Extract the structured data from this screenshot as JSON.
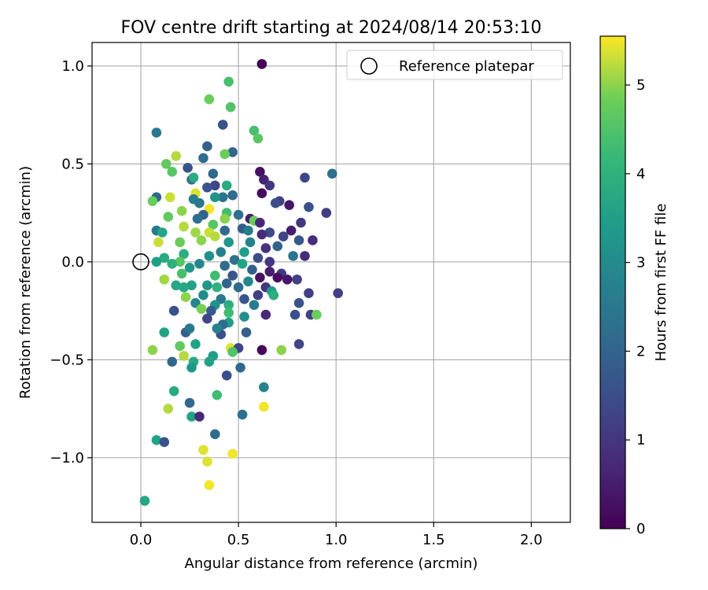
{
  "chart_data": {
    "type": "scatter",
    "title": "FOV centre drift starting at 2024/08/14 20:53:10",
    "xlabel": "Angular distance from reference (arcmin)",
    "ylabel": "Rotation from reference (arcmin)",
    "xlim": [
      -0.25,
      2.2
    ],
    "ylim": [
      -1.33,
      1.12
    ],
    "xticks": [
      0.0,
      0.5,
      1.0,
      1.5,
      2.0
    ],
    "xtick_labels": [
      "0.0",
      "0.5",
      "1.0",
      "1.5",
      "2.0"
    ],
    "yticks": [
      -1.0,
      -0.5,
      0.0,
      0.5,
      1.0
    ],
    "ytick_labels": [
      "−1.0",
      "−0.5",
      "0.0",
      "0.5",
      "1.0"
    ],
    "grid": true,
    "legend": {
      "position": "top-right",
      "entries": [
        "Reference platepar"
      ]
    },
    "reference_point": {
      "x": 0.0,
      "y": 0.0,
      "label": "Reference platepar"
    },
    "colorbar": {
      "label": "Hours from first FF file",
      "range": [
        0,
        5.55
      ],
      "ticks": [
        0,
        1,
        2,
        3,
        4,
        5
      ],
      "tick_labels": [
        "0",
        "1",
        "2",
        "3",
        "4",
        "5"
      ],
      "colormap": "viridis"
    },
    "points": [
      [
        0.62,
        1.01,
        0.0
      ],
      [
        0.45,
        0.92,
        4.4
      ],
      [
        0.35,
        0.83,
        4.8
      ],
      [
        0.46,
        0.79,
        4.5
      ],
      [
        0.42,
        0.7,
        1.6
      ],
      [
        0.58,
        0.67,
        4.4
      ],
      [
        0.6,
        0.63,
        4.6
      ],
      [
        0.08,
        0.66,
        2.5
      ],
      [
        0.34,
        0.59,
        1.9
      ],
      [
        0.47,
        0.56,
        2.0
      ],
      [
        0.43,
        0.55,
        4.8
      ],
      [
        0.32,
        0.53,
        2.2
      ],
      [
        0.18,
        0.54,
        5.2
      ],
      [
        0.13,
        0.5,
        4.7
      ],
      [
        0.16,
        0.46,
        4.6
      ],
      [
        0.24,
        0.48,
        1.6
      ],
      [
        0.61,
        0.46,
        0.3
      ],
      [
        0.98,
        0.45,
        2.3
      ],
      [
        0.37,
        0.45,
        2.1
      ],
      [
        0.63,
        0.42,
        0.6
      ],
      [
        0.26,
        0.42,
        2.2
      ],
      [
        0.27,
        0.43,
        3.8
      ],
      [
        0.84,
        0.43,
        1.3
      ],
      [
        0.66,
        0.39,
        1.0
      ],
      [
        0.44,
        0.39,
        3.8
      ],
      [
        0.38,
        0.39,
        1.3
      ],
      [
        0.34,
        0.38,
        1.6
      ],
      [
        0.08,
        0.33,
        2.1
      ],
      [
        0.15,
        0.33,
        5.3
      ],
      [
        0.28,
        0.35,
        5.4
      ],
      [
        0.47,
        0.34,
        2.2
      ],
      [
        0.62,
        0.35,
        0.2
      ],
      [
        0.42,
        0.33,
        2.4
      ],
      [
        0.38,
        0.33,
        3.2
      ],
      [
        0.27,
        0.32,
        2.7
      ],
      [
        0.06,
        0.31,
        4.8
      ],
      [
        0.71,
        0.31,
        1.2
      ],
      [
        0.69,
        0.3,
        1.5
      ],
      [
        0.3,
        0.3,
        2.5
      ],
      [
        0.76,
        0.29,
        0.4
      ],
      [
        0.86,
        0.28,
        1.6
      ],
      [
        0.95,
        0.25,
        1.1
      ],
      [
        0.21,
        0.26,
        5.0
      ],
      [
        0.35,
        0.27,
        5.5
      ],
      [
        0.44,
        0.25,
        4.3
      ],
      [
        0.5,
        0.24,
        2.3
      ],
      [
        0.32,
        0.24,
        2.0
      ],
      [
        0.14,
        0.23,
        4.7
      ],
      [
        0.56,
        0.22,
        0.5
      ],
      [
        0.58,
        0.21,
        4.8
      ],
      [
        0.61,
        0.2,
        0.7
      ],
      [
        0.82,
        0.2,
        1.0
      ],
      [
        0.43,
        0.22,
        5.0
      ],
      [
        0.29,
        0.22,
        2.3
      ],
      [
        0.22,
        0.18,
        5.2
      ],
      [
        0.37,
        0.19,
        4.6
      ],
      [
        0.08,
        0.16,
        2.6
      ],
      [
        0.11,
        0.15,
        3.7
      ],
      [
        0.35,
        0.15,
        5.3
      ],
      [
        0.28,
        0.15,
        5.1
      ],
      [
        0.43,
        0.16,
        2.2
      ],
      [
        0.52,
        0.17,
        1.8
      ],
      [
        0.55,
        0.16,
        2.6
      ],
      [
        0.66,
        0.15,
        1.4
      ],
      [
        0.77,
        0.16,
        0.5
      ],
      [
        0.62,
        0.14,
        0.8
      ],
      [
        0.73,
        0.13,
        1.3
      ],
      [
        0.88,
        0.11,
        0.8
      ],
      [
        0.81,
        0.11,
        1.7
      ],
      [
        0.38,
        0.13,
        5.2
      ],
      [
        0.31,
        0.11,
        5.0
      ],
      [
        0.2,
        0.1,
        4.8
      ],
      [
        0.09,
        0.1,
        5.3
      ],
      [
        0.45,
        0.1,
        3.3
      ],
      [
        0.56,
        0.1,
        2.8
      ],
      [
        0.64,
        0.07,
        0.9
      ],
      [
        0.7,
        0.08,
        2.0
      ],
      [
        0.53,
        0.05,
        3.5
      ],
      [
        0.41,
        0.05,
        2.7
      ],
      [
        0.22,
        0.04,
        3.9
      ],
      [
        0.12,
        0.02,
        3.8
      ],
      [
        0.35,
        0.03,
        3.1
      ],
      [
        0.48,
        0.01,
        2.3
      ],
      [
        0.6,
        0.02,
        1.5
      ],
      [
        0.66,
        0.0,
        1.0
      ],
      [
        0.78,
        0.03,
        2.4
      ],
      [
        0.84,
        0.03,
        0.8
      ],
      [
        0.52,
        -0.01,
        3.6
      ],
      [
        0.43,
        -0.02,
        2.2
      ],
      [
        0.3,
        -0.01,
        2.9
      ],
      [
        0.2,
        0.0,
        4.6
      ],
      [
        0.08,
        0.0,
        3.5
      ],
      [
        0.16,
        -0.01,
        3.9
      ],
      [
        0.25,
        -0.03,
        3.3
      ],
      [
        0.57,
        -0.04,
        1.9
      ],
      [
        0.66,
        -0.05,
        0.5
      ],
      [
        0.72,
        -0.06,
        1.1
      ],
      [
        0.8,
        -0.09,
        1.2
      ],
      [
        0.47,
        -0.07,
        1.7
      ],
      [
        0.38,
        -0.07,
        4.3
      ],
      [
        0.21,
        -0.06,
        4.4
      ],
      [
        0.12,
        -0.09,
        5.1
      ],
      [
        0.61,
        -0.08,
        0.3
      ],
      [
        0.7,
        -0.08,
        0.2
      ],
      [
        0.75,
        -0.09,
        0.4
      ],
      [
        0.55,
        -0.1,
        2.9
      ],
      [
        0.44,
        -0.11,
        2.0
      ],
      [
        0.34,
        -0.12,
        3.3
      ],
      [
        0.26,
        -0.12,
        3.6
      ],
      [
        0.18,
        -0.12,
        3.7
      ],
      [
        0.22,
        -0.13,
        3.7
      ],
      [
        0.39,
        -0.13,
        4.0
      ],
      [
        0.5,
        -0.13,
        2.2
      ],
      [
        0.64,
        -0.13,
        1.0
      ],
      [
        0.67,
        -0.15,
        3.5
      ],
      [
        0.86,
        -0.16,
        1.2
      ],
      [
        1.01,
        -0.16,
        1.2
      ],
      [
        0.6,
        -0.17,
        1.2
      ],
      [
        0.32,
        -0.17,
        3.0
      ],
      [
        0.23,
        -0.18,
        5.0
      ],
      [
        0.41,
        -0.19,
        2.5
      ],
      [
        0.53,
        -0.19,
        1.7
      ],
      [
        0.68,
        -0.17,
        3.9
      ],
      [
        0.81,
        -0.21,
        1.6
      ],
      [
        0.58,
        -0.22,
        2.6
      ],
      [
        0.45,
        -0.22,
        3.9
      ],
      [
        0.28,
        -0.21,
        2.9
      ],
      [
        0.38,
        -0.22,
        3.2
      ],
      [
        0.31,
        -0.24,
        4.9
      ],
      [
        0.17,
        -0.25,
        1.6
      ],
      [
        0.36,
        -0.25,
        1.8
      ],
      [
        0.45,
        -0.26,
        4.3
      ],
      [
        0.53,
        -0.28,
        3.1
      ],
      [
        0.64,
        -0.27,
        0.7
      ],
      [
        0.79,
        -0.27,
        1.5
      ],
      [
        0.87,
        -0.27,
        1.2
      ],
      [
        0.9,
        -0.27,
        4.8
      ],
      [
        0.34,
        -0.29,
        1.3
      ],
      [
        0.45,
        -0.31,
        3.5
      ],
      [
        0.42,
        -0.32,
        2.2
      ],
      [
        0.12,
        -0.36,
        3.6
      ],
      [
        0.23,
        -0.36,
        1.9
      ],
      [
        0.54,
        -0.36,
        1.9
      ],
      [
        0.41,
        -0.37,
        1.5
      ],
      [
        0.39,
        -0.34,
        2.8
      ],
      [
        0.25,
        -0.34,
        2.5
      ],
      [
        0.2,
        -0.43,
        4.7
      ],
      [
        0.28,
        -0.42,
        3.6
      ],
      [
        0.46,
        -0.44,
        5.4
      ],
      [
        0.5,
        -0.44,
        1.3
      ],
      [
        0.06,
        -0.45,
        5.0
      ],
      [
        0.62,
        -0.45,
        0.1
      ],
      [
        0.72,
        -0.45,
        5.0
      ],
      [
        0.81,
        -0.42,
        1.3
      ],
      [
        0.47,
        -0.46,
        4.5
      ],
      [
        0.22,
        -0.48,
        5.2
      ],
      [
        0.37,
        -0.48,
        3.5
      ],
      [
        0.16,
        -0.51,
        2.1
      ],
      [
        0.35,
        -0.51,
        3.6
      ],
      [
        0.27,
        -0.51,
        3.8
      ],
      [
        0.26,
        -0.54,
        3.3
      ],
      [
        0.51,
        -0.54,
        2.1
      ],
      [
        0.44,
        -0.58,
        1.5
      ],
      [
        0.63,
        -0.64,
        2.8
      ],
      [
        0.17,
        -0.66,
        3.8
      ],
      [
        0.39,
        -0.68,
        4.3
      ],
      [
        0.25,
        -0.72,
        2.1
      ],
      [
        0.63,
        -0.74,
        5.5
      ],
      [
        0.14,
        -0.75,
        5.2
      ],
      [
        0.52,
        -0.78,
        2.3
      ],
      [
        0.26,
        -0.79,
        3.6
      ],
      [
        0.3,
        -0.79,
        0.7
      ],
      [
        0.38,
        -0.88,
        2.2
      ],
      [
        0.08,
        -0.91,
        3.6
      ],
      [
        0.12,
        -0.92,
        1.6
      ],
      [
        0.32,
        -0.96,
        5.4
      ],
      [
        0.47,
        -0.98,
        5.5
      ],
      [
        0.34,
        -1.02,
        5.4
      ],
      [
        0.35,
        -1.14,
        5.5
      ],
      [
        0.02,
        -1.22,
        3.7
      ]
    ]
  }
}
